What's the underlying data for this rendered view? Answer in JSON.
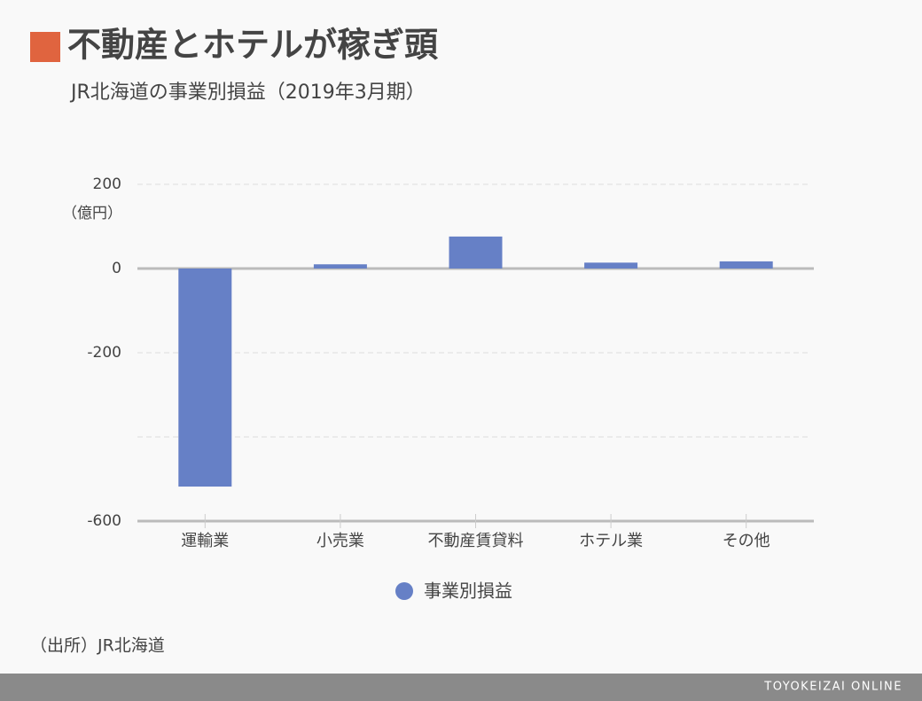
{
  "chart_data": {
    "type": "bar",
    "title": "不動産とホテルが稼ぎ頭",
    "subtitle": "JR北海道の事業別損益（2019年3月期）",
    "y_unit": "（億円）",
    "categories": [
      "運輸業",
      "小売業",
      "不動産賃貸料",
      "ホテル業",
      "その他"
    ],
    "series": [
      {
        "name": "事業別損益",
        "color": "#6680c6",
        "values": [
          -518,
          10,
          76,
          14,
          17
        ]
      }
    ],
    "ylim": [
      -600,
      200
    ],
    "yticks": [
      200,
      0,
      -200,
      {
        "value": -400,
        "label": null
      },
      -600
    ],
    "grid": true,
    "source": "（出所）JR北海道",
    "footer": "TOYOKEIZAI ONLINE"
  }
}
